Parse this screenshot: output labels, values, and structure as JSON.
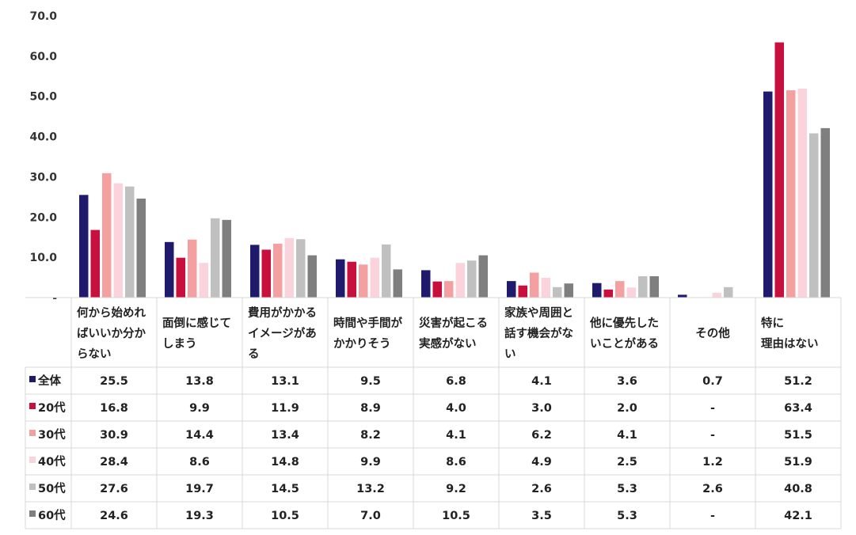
{
  "chart_data": {
    "type": "bar",
    "title": "",
    "xlabel": "",
    "ylabel": "",
    "ylim": [
      0,
      70
    ],
    "yticks": [
      "-",
      "10.0",
      "20.0",
      "30.0",
      "40.0",
      "50.0",
      "60.0",
      "70.0"
    ],
    "grid": false,
    "legend": "table-left",
    "categories": [
      [
        "何から始めれ",
        "ばいいか分か",
        "らない"
      ],
      [
        "面倒に感じて",
        "しまう"
      ],
      [
        "費用がかかる",
        "イメージがあ",
        "る"
      ],
      [
        "時間や手間が",
        "かかりそう"
      ],
      [
        "災害が起こる",
        "実感がない"
      ],
      [
        "家族や周囲と",
        "話す機会がな",
        "い"
      ],
      [
        "他に優先した",
        "いことがある"
      ],
      [
        "その他"
      ],
      [
        "特に",
        "理由はない"
      ]
    ],
    "series": [
      {
        "name": "全体",
        "color": "#1f1a6b",
        "values": [
          25.5,
          13.8,
          13.1,
          9.5,
          6.8,
          4.1,
          3.6,
          0.7,
          51.2
        ],
        "labels": [
          "25.5",
          "13.8",
          "13.1",
          "9.5",
          "6.8",
          "4.1",
          "3.6",
          "0.7",
          "51.2"
        ]
      },
      {
        "name": "20代",
        "color": "#c8103e",
        "values": [
          16.8,
          9.9,
          11.9,
          8.9,
          4.0,
          3.0,
          2.0,
          null,
          63.4
        ],
        "labels": [
          "16.8",
          "9.9",
          "11.9",
          "8.9",
          "4.0",
          "3.0",
          "2.0",
          "-",
          "63.4"
        ]
      },
      {
        "name": "30代",
        "color": "#f4a0a0",
        "values": [
          30.9,
          14.4,
          13.4,
          8.2,
          4.1,
          6.2,
          4.1,
          null,
          51.5
        ],
        "labels": [
          "30.9",
          "14.4",
          "13.4",
          "8.2",
          "4.1",
          "6.2",
          "4.1",
          "-",
          "51.5"
        ]
      },
      {
        "name": "40代",
        "color": "#fbd3dc",
        "values": [
          28.4,
          8.6,
          14.8,
          9.9,
          8.6,
          4.9,
          2.5,
          1.2,
          51.9
        ],
        "labels": [
          "28.4",
          "8.6",
          "14.8",
          "9.9",
          "8.6",
          "4.9",
          "2.5",
          "1.2",
          "51.9"
        ]
      },
      {
        "name": "50代",
        "color": "#c0c0c0",
        "values": [
          27.6,
          19.7,
          14.5,
          13.2,
          9.2,
          2.6,
          5.3,
          2.6,
          40.8
        ],
        "labels": [
          "27.6",
          "19.7",
          "14.5",
          "13.2",
          "9.2",
          "2.6",
          "5.3",
          "2.6",
          "40.8"
        ]
      },
      {
        "name": "60代",
        "color": "#7f7f7f",
        "values": [
          24.6,
          19.3,
          10.5,
          7.0,
          10.5,
          3.5,
          5.3,
          null,
          42.1
        ],
        "labels": [
          "24.6",
          "19.3",
          "10.5",
          "7.0",
          "10.5",
          "3.5",
          "5.3",
          "-",
          "42.1"
        ]
      }
    ]
  }
}
